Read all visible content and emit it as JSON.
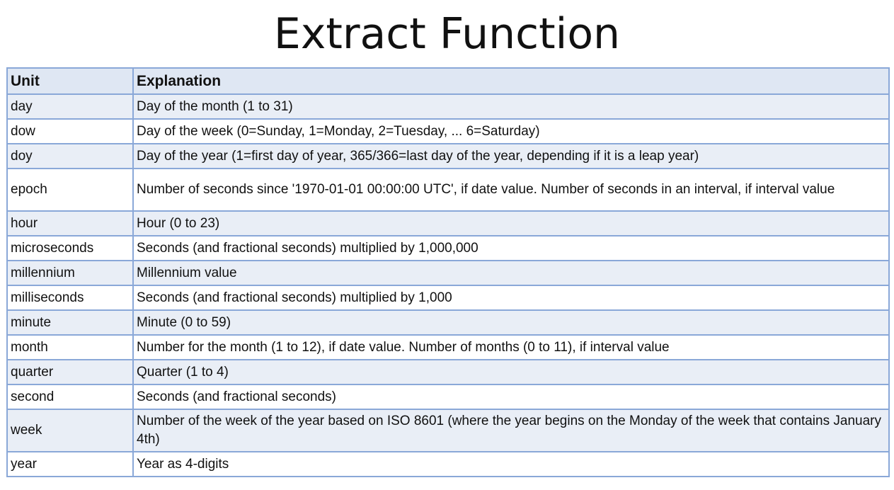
{
  "title": "Extract Function",
  "table": {
    "headers": [
      "Unit",
      "Explanation"
    ],
    "rows": [
      {
        "unit": "day",
        "explanation": "Day of the month (1 to 31)"
      },
      {
        "unit": "dow",
        "explanation": "Day of the week (0=Sunday, 1=Monday, 2=Tuesday, ... 6=Saturday)"
      },
      {
        "unit": "doy",
        "explanation": "Day of the year (1=first day of year, 365/366=last day of the year, depending if it is a leap year)"
      },
      {
        "unit": "epoch",
        "explanation": "Number of seconds since '1970-01-01 00:00:00 UTC', if date value. Number of seconds in an interval, if interval value"
      },
      {
        "unit": "hour",
        "explanation": "Hour (0 to 23)"
      },
      {
        "unit": "microseconds",
        "explanation": "Seconds (and fractional seconds) multiplied by 1,000,000"
      },
      {
        "unit": "millennium",
        "explanation": "Millennium value"
      },
      {
        "unit": "milliseconds",
        "explanation": "Seconds (and fractional seconds) multiplied by 1,000"
      },
      {
        "unit": "minute",
        "explanation": "Minute (0 to 59)"
      },
      {
        "unit": "month",
        "explanation": "Number for the month (1 to 12), if date value. Number of months (0 to 11), if interval value"
      },
      {
        "unit": "quarter",
        "explanation": "Quarter (1 to 4)"
      },
      {
        "unit": "second",
        "explanation": "Seconds (and fractional seconds)"
      },
      {
        "unit": "week",
        "explanation": "Number of the week of the year based on ISO 8601 (where the year begins on the Monday of the week that contains January 4th)"
      },
      {
        "unit": "year",
        "explanation": "Year as 4-digits"
      }
    ]
  },
  "colors": {
    "border": "#8aa8d8",
    "stripe": "#e9eef6",
    "header_background": "#dfe7f3",
    "text": "#111111"
  }
}
